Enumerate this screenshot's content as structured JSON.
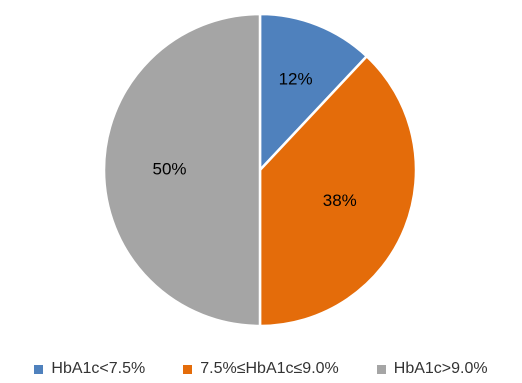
{
  "chart_data": {
    "type": "pie",
    "title": "",
    "slices": [
      {
        "label": "HbA1c<7.5%",
        "value": 12,
        "display": "12%",
        "color": "#4F81BD"
      },
      {
        "label": "7.5%≤HbA1c≤9.0%",
        "value": 38,
        "display": "38%",
        "color": "#E46C0A"
      },
      {
        "label": "HbA1c>9.0%",
        "value": 50,
        "display": "50%",
        "color": "#A5A5A5"
      }
    ],
    "legend_position": "bottom"
  }
}
